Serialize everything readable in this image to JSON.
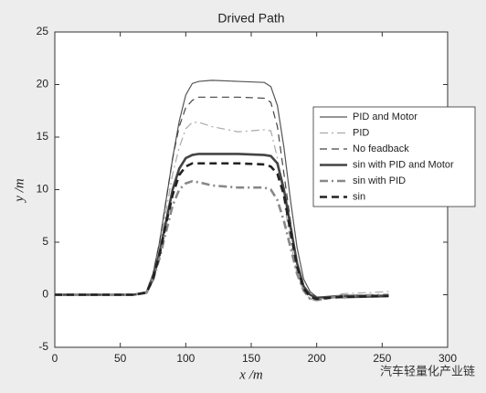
{
  "chart_data": {
    "type": "line",
    "title": "Drived Path",
    "x_label": "x /m",
    "y_label": "y /m",
    "x": [
      0,
      60,
      70,
      75,
      80,
      85,
      90,
      95,
      100,
      105,
      110,
      120,
      140,
      160,
      165,
      170,
      175,
      180,
      185,
      190,
      195,
      200,
      220,
      255
    ],
    "series": [
      {
        "name": "PID and Motor",
        "color": "#555555",
        "dash": "solid",
        "width": 1.2,
        "values": [
          0,
          0,
          0.3,
          2,
          5,
          9,
          13,
          16.5,
          19,
          20.1,
          20.3,
          20.4,
          20.3,
          20.2,
          19.8,
          18,
          14,
          9,
          4.5,
          1.5,
          0.3,
          -0.2,
          -0.3,
          -0.2
        ]
      },
      {
        "name": "PID",
        "color": "#aaaaaa",
        "dash": "dashdot",
        "width": 1.2,
        "values": [
          0,
          0,
          0.2,
          1.8,
          4.5,
          8,
          11.5,
          14,
          15.8,
          16.4,
          16.4,
          16,
          15.5,
          15.7,
          15.6,
          13,
          9,
          5,
          2,
          0.3,
          -0.4,
          -0.6,
          0.1,
          0.3
        ]
      },
      {
        "name": "No feadback",
        "color": "#444444",
        "dash": "dashed",
        "width": 1.2,
        "values": [
          0,
          0,
          0.3,
          2,
          5,
          9,
          13,
          16,
          17.8,
          18.5,
          18.8,
          18.8,
          18.8,
          18.7,
          18.3,
          16,
          11.5,
          7,
          3,
          0.8,
          0,
          -0.3,
          -0.2,
          -0.1
        ]
      },
      {
        "name": "sin with PID and Motor",
        "color": "#444444",
        "dash": "solid",
        "width": 2.6,
        "values": [
          0,
          0,
          0.2,
          1.5,
          4,
          7,
          10,
          12,
          13,
          13.3,
          13.4,
          13.4,
          13.4,
          13.3,
          13.2,
          12.5,
          10,
          6.5,
          3,
          0.8,
          0,
          -0.3,
          -0.1,
          -0.1
        ]
      },
      {
        "name": "sin with PID",
        "color": "#888888",
        "dash": "dashdot",
        "width": 2.6,
        "values": [
          0,
          0,
          0.2,
          1.4,
          3.5,
          6,
          8.5,
          10,
          10.6,
          10.8,
          10.7,
          10.4,
          10.2,
          10.2,
          10,
          9,
          7,
          4.5,
          2,
          0.4,
          -0.4,
          -0.5,
          -0.1,
          0
        ]
      },
      {
        "name": "sin",
        "color": "#222222",
        "dash": "dashed",
        "width": 2.6,
        "values": [
          0,
          0,
          0.2,
          1.5,
          3.8,
          6.8,
          9.5,
          11.4,
          12.2,
          12.5,
          12.5,
          12.5,
          12.5,
          12.4,
          12.2,
          11.5,
          9.5,
          6,
          2.7,
          0.6,
          -0.2,
          -0.4,
          -0.2,
          -0.1
        ]
      }
    ],
    "xlim": [
      0,
      300
    ],
    "xticks": [
      0,
      50,
      100,
      150,
      200,
      250,
      300
    ],
    "ylim": [
      -5,
      25
    ],
    "yticks": [
      -5,
      0,
      5,
      10,
      15,
      20,
      25
    ],
    "grid": false,
    "legend": "right"
  },
  "watermark": "汽车轻量化产业链"
}
